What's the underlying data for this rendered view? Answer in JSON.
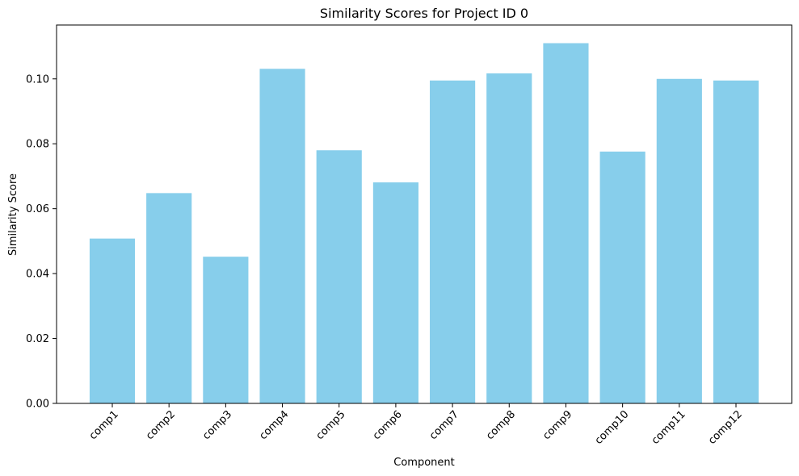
{
  "chart_data": {
    "type": "bar",
    "title": "Similarity Scores for Project ID 0",
    "xlabel": "Component",
    "ylabel": "Similarity Score",
    "categories": [
      "comp1",
      "comp2",
      "comp3",
      "comp4",
      "comp5",
      "comp6",
      "comp7",
      "comp8",
      "comp9",
      "comp10",
      "comp11",
      "comp12"
    ],
    "values": [
      0.0508,
      0.0648,
      0.0452,
      0.1031,
      0.078,
      0.0681,
      0.0995,
      0.1017,
      0.111,
      0.0776,
      0.1,
      0.0995
    ],
    "ylim": [
      0,
      0.1166
    ],
    "yticks": [
      0.0,
      0.02,
      0.04,
      0.06,
      0.08,
      0.1
    ],
    "ytick_labels": [
      "0.00",
      "0.02",
      "0.04",
      "0.06",
      "0.08",
      "0.10"
    ],
    "bar_color": "#87ceeb",
    "grid": false,
    "legend": "none"
  }
}
